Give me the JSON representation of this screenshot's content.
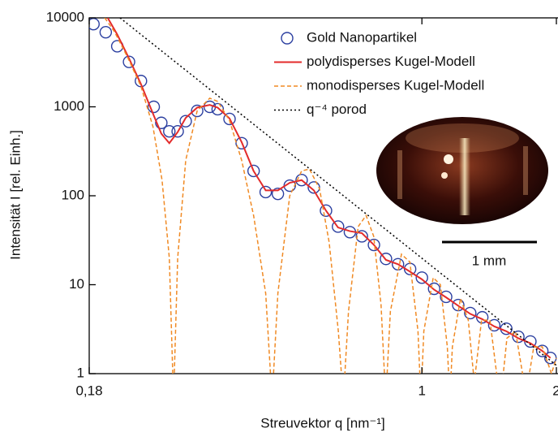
{
  "chart_data": {
    "type": "line",
    "x_label": "Streuvektor q [nm⁻¹]",
    "y_label": "Intensität I [rel. Einh.]",
    "xscale": "log",
    "yscale": "log",
    "xlim": [
      0.18,
      2
    ],
    "ylim": [
      1,
      10000
    ],
    "xticks": [
      {
        "value": 0.18,
        "label": "0,18"
      },
      1,
      2
    ],
    "yticks": [
      1,
      10,
      100,
      1000,
      10000
    ],
    "legend": "upper right",
    "annotation": "1 mm",
    "series": [
      {
        "name": "Gold Nanopartikel",
        "color": "#2b3fa0",
        "style": "circle",
        "x": [
          0.184,
          0.196,
          0.208,
          0.221,
          0.235,
          0.251,
          0.261,
          0.272,
          0.284,
          0.296,
          0.314,
          0.335,
          0.349,
          0.371,
          0.395,
          0.42,
          0.447,
          0.476,
          0.506,
          0.538,
          0.573,
          0.61,
          0.649,
          0.69,
          0.734,
          0.781,
          0.831,
          0.884,
          0.941,
          1.0,
          1.065,
          1.133,
          1.206,
          1.283,
          1.365,
          1.452,
          1.545,
          1.644,
          1.749,
          1.86,
          1.94
        ],
        "values": [
          8500,
          6900,
          4800,
          3200,
          1950,
          1000,
          660,
          530,
          530,
          690,
          900,
          1000,
          940,
          730,
          390,
          190,
          110,
          105,
          130,
          150,
          124,
          68,
          45,
          39,
          35,
          28,
          19.5,
          17,
          15,
          12,
          9,
          7.3,
          5.9,
          4.8,
          4.3,
          3.5,
          3.2,
          2.6,
          2.3,
          1.8,
          1.5
        ]
      },
      {
        "name": "polydisperses Kugel-Modell",
        "color": "#e32b2b",
        "style": "solid",
        "x": [
          0.198,
          0.208,
          0.221,
          0.235,
          0.251,
          0.261,
          0.272,
          0.284,
          0.296,
          0.314,
          0.335,
          0.349,
          0.371,
          0.395,
          0.42,
          0.447,
          0.476,
          0.506,
          0.538,
          0.573,
          0.61,
          0.649,
          0.69,
          0.734,
          0.781,
          0.831,
          0.884,
          0.941,
          1.0,
          1.065,
          1.133,
          1.206,
          1.283,
          1.365,
          1.452,
          1.545,
          1.644,
          1.749,
          1.86,
          1.94
        ],
        "values": [
          10000,
          6500,
          3500,
          1800,
          800,
          500,
          390,
          520,
          750,
          980,
          1050,
          980,
          740,
          400,
          190,
          115,
          115,
          140,
          150,
          115,
          68,
          44,
          40,
          38,
          28,
          19,
          17,
          14,
          11.5,
          8.8,
          7.2,
          5.8,
          4.7,
          4.1,
          3.4,
          3.0,
          2.5,
          2.2,
          1.8,
          1.5
        ]
      },
      {
        "name": "monodisperses Kugel-Modell",
        "color": "#f08a24",
        "style": "dashed",
        "x": [
          0.195,
          0.205,
          0.22,
          0.235,
          0.25,
          0.262,
          0.272,
          0.278,
          0.284,
          0.296,
          0.314,
          0.335,
          0.349,
          0.371,
          0.395,
          0.42,
          0.447,
          0.462,
          0.476,
          0.506,
          0.538,
          0.56,
          0.59,
          0.62,
          0.65,
          0.667,
          0.685,
          0.72,
          0.75,
          0.78,
          0.81,
          0.83,
          0.85,
          0.9,
          0.94,
          0.98,
          0.995,
          1.01,
          1.06,
          1.1,
          1.14,
          1.155,
          1.17,
          1.22,
          1.27,
          1.31,
          1.36,
          1.42,
          1.47,
          1.5,
          1.55,
          1.62,
          1.68,
          1.72,
          1.78,
          1.86,
          1.95,
          2.0
        ],
        "values": [
          10000,
          7000,
          3500,
          1700,
          600,
          150,
          20,
          0.5,
          20,
          250,
          900,
          1250,
          1150,
          700,
          250,
          60,
          8,
          0.5,
          8,
          100,
          190,
          200,
          120,
          30,
          3,
          0.5,
          5,
          45,
          60,
          35,
          6,
          0.5,
          5,
          22,
          18,
          3,
          0.5,
          3,
          12,
          10,
          2,
          0.5,
          2,
          7,
          4,
          0.8,
          4,
          4,
          1,
          0.5,
          2.5,
          3,
          1,
          0.7,
          2,
          2,
          1,
          1.5
        ]
      },
      {
        "name": "q⁻⁴ porod",
        "color": "#000000",
        "style": "dotted",
        "x": [
          0.211,
          2
        ],
        "values": [
          10000,
          1.24
        ]
      }
    ]
  }
}
